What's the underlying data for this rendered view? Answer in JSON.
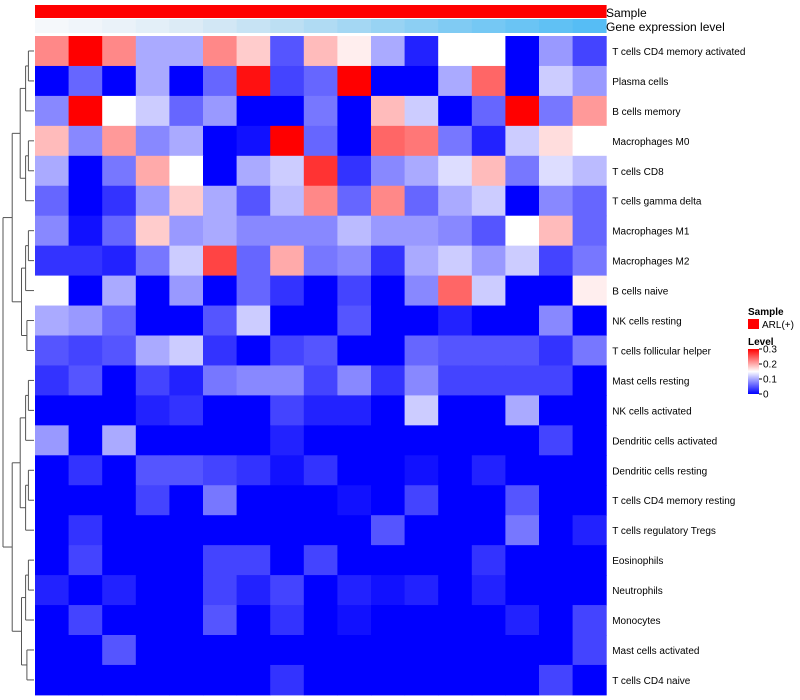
{
  "chart_data": {
    "type": "heatmap",
    "annotation_labels": [
      "Sample",
      "Gene expression level"
    ],
    "legend": {
      "sample_title": "Sample",
      "sample_entries": [
        {
          "label": "ARL(+)",
          "color": "#ff0000"
        }
      ],
      "level_title": "Level",
      "level_ticks": [
        "0.3",
        "0.2",
        "0.1",
        "0"
      ],
      "level_tick_values": [
        0.3,
        0.2,
        0.1,
        0
      ],
      "scale_range": [
        0,
        0.3
      ],
      "scale_colors": {
        "low": "#0000ff",
        "mid": "#ffffff",
        "high": "#ff0000"
      }
    },
    "sample_color": "#ff0000",
    "expression_colors": [
      "#f5f8fb",
      "#f0f5fa",
      "#eaf2f9",
      "#e3eff8",
      "#dcebf6",
      "#d2e7f5",
      "#c7e3f4",
      "#bcdff3",
      "#b0dbf3",
      "#a4d7f3",
      "#98d3f3",
      "#8ccff3",
      "#80cbf3",
      "#75c8f4",
      "#6ac4f4",
      "#60c1f4",
      "#56bdf5",
      "#4cbaf5"
    ],
    "rows": [
      "T cells CD4 memory activated",
      "Plasma cells",
      "B cells memory",
      "Macrophages M0",
      "T cells CD8",
      "T cells gamma delta",
      "Macrophages M1",
      "Macrophages M2",
      "B cells naive",
      "NK cells resting",
      "T cells follicular helper",
      "Mast cells resting",
      "NK cells activated",
      "Dendritic cells activated",
      "Dendritic cells resting",
      "T cells CD4 memory resting",
      "T cells regulatory  Tregs",
      "Eosinophils",
      "Neutrophils",
      "Monocytes",
      "Mast cells activated",
      "T cells CD4 naive"
    ],
    "values": [
      [
        0.22,
        0.3,
        0.22,
        0.1,
        0.1,
        0.22,
        0.18,
        0.05,
        0.19,
        0.16,
        0.1,
        0.02,
        0.15,
        0.15,
        0.0,
        0.09,
        0.04
      ],
      [
        0.0,
        0.06,
        0.0,
        0.1,
        0.0,
        0.06,
        0.29,
        0.04,
        0.06,
        0.3,
        0.0,
        0.0,
        0.1,
        0.24,
        0.0,
        0.12,
        0.09
      ],
      [
        0.08,
        0.3,
        0.15,
        0.12,
        0.06,
        0.09,
        0.0,
        0.0,
        0.07,
        0.0,
        0.19,
        0.12,
        0.0,
        0.06,
        0.3,
        0.07,
        0.21
      ],
      [
        0.19,
        0.08,
        0.21,
        0.08,
        0.1,
        0.0,
        0.01,
        0.3,
        0.06,
        0.0,
        0.24,
        0.23,
        0.07,
        0.02,
        0.12,
        0.17,
        0.15
      ],
      [
        0.1,
        0.0,
        0.07,
        0.2,
        0.15,
        0.0,
        0.1,
        0.12,
        0.27,
        0.03,
        0.08,
        0.1,
        0.13,
        0.19,
        0.07,
        0.13,
        0.11
      ],
      [
        0.06,
        0.0,
        0.03,
        0.09,
        0.18,
        0.1,
        0.05,
        0.11,
        0.22,
        0.06,
        0.22,
        0.06,
        0.1,
        0.12,
        0.0,
        0.08,
        0.06
      ],
      [
        0.08,
        0.01,
        0.06,
        0.18,
        0.09,
        0.1,
        0.08,
        0.08,
        0.08,
        0.11,
        0.09,
        0.09,
        0.08,
        0.05,
        0.15,
        0.19,
        0.06
      ],
      [
        0.03,
        0.03,
        0.02,
        0.07,
        0.12,
        0.26,
        0.06,
        0.2,
        0.07,
        0.08,
        0.03,
        0.1,
        0.12,
        0.09,
        0.12,
        0.04,
        0.07
      ],
      [
        0.15,
        0.0,
        0.1,
        0.0,
        0.09,
        0.0,
        0.06,
        0.03,
        0.0,
        0.04,
        0.0,
        0.08,
        0.24,
        0.12,
        0.0,
        0.0,
        0.16
      ],
      [
        0.1,
        0.09,
        0.06,
        0.0,
        0.0,
        0.05,
        0.12,
        0.0,
        0.0,
        0.05,
        0.0,
        0.0,
        0.02,
        0.0,
        0.0,
        0.08,
        0.0
      ],
      [
        0.05,
        0.04,
        0.05,
        0.1,
        0.12,
        0.03,
        0.0,
        0.04,
        0.05,
        0.0,
        0.0,
        0.06,
        0.05,
        0.05,
        0.05,
        0.03,
        0.07
      ],
      [
        0.03,
        0.05,
        0.0,
        0.04,
        0.02,
        0.07,
        0.08,
        0.08,
        0.04,
        0.08,
        0.03,
        0.08,
        0.04,
        0.04,
        0.04,
        0.04,
        0.0
      ],
      [
        0.0,
        0.0,
        0.0,
        0.02,
        0.03,
        0.0,
        0.0,
        0.04,
        0.02,
        0.02,
        0.0,
        0.12,
        0.0,
        0.0,
        0.1,
        0.0,
        0.0
      ],
      [
        0.09,
        0.0,
        0.1,
        0.0,
        0.0,
        0.0,
        0.0,
        0.02,
        0.0,
        0.0,
        0.0,
        0.0,
        0.0,
        0.0,
        0.0,
        0.04,
        0.0
      ],
      [
        0.0,
        0.03,
        0.0,
        0.05,
        0.05,
        0.04,
        0.03,
        0.01,
        0.03,
        0.0,
        0.0,
        0.01,
        0.0,
        0.02,
        0.0,
        0.0,
        0.0
      ],
      [
        0.0,
        0.0,
        0.0,
        0.04,
        0.0,
        0.07,
        0.0,
        0.0,
        0.0,
        0.01,
        0.0,
        0.04,
        0.0,
        0.0,
        0.05,
        0.0,
        0.0
      ],
      [
        0.0,
        0.03,
        0.0,
        0.0,
        0.0,
        0.0,
        0.0,
        0.0,
        0.0,
        0.0,
        0.05,
        0.0,
        0.0,
        0.0,
        0.07,
        0.0,
        0.02
      ],
      [
        0.0,
        0.04,
        0.0,
        0.0,
        0.0,
        0.04,
        0.04,
        0.0,
        0.04,
        0.0,
        0.0,
        0.0,
        0.0,
        0.03,
        0.0,
        0.0,
        0.0
      ],
      [
        0.02,
        0.0,
        0.02,
        0.0,
        0.0,
        0.04,
        0.02,
        0.04,
        0.0,
        0.02,
        0.01,
        0.02,
        0.0,
        0.02,
        0.0,
        0.0,
        0.0
      ],
      [
        0.0,
        0.04,
        0.0,
        0.0,
        0.0,
        0.05,
        0.0,
        0.03,
        0.0,
        0.01,
        0.0,
        0.0,
        0.0,
        0.0,
        0.02,
        0.0,
        0.04
      ],
      [
        0.0,
        0.0,
        0.05,
        0.0,
        0.0,
        0.0,
        0.0,
        0.0,
        0.0,
        0.0,
        0.0,
        0.0,
        0.0,
        0.0,
        0.0,
        0.0,
        0.04
      ],
      [
        0.0,
        0.0,
        0.0,
        0.0,
        0.0,
        0.0,
        0.0,
        0.03,
        0.0,
        0.0,
        0.0,
        0.0,
        0.0,
        0.0,
        0.0,
        0.04,
        0.0
      ]
    ]
  }
}
